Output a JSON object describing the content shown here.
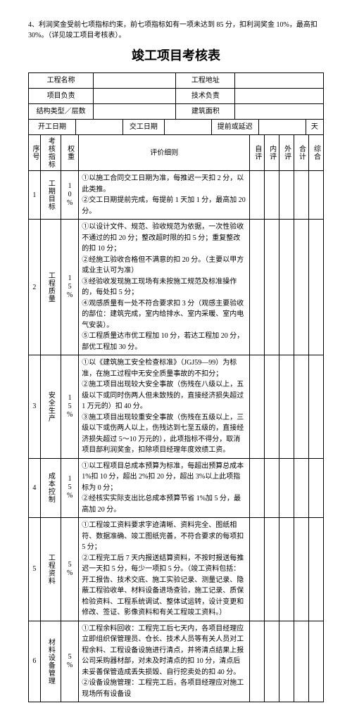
{
  "intro": "4、利润奖金受前七项指标约束，前七项指标如有一项未达到 85 分，扣利润奖金 10%，最高扣 30%。（详见竣工项目考核表）。",
  "title": "竣工项目考核表",
  "header": {
    "proj_name_lbl": "工程名称",
    "proj_addr_lbl": "工程地址",
    "proj_mgr_lbl": "项目负责",
    "tech_mgr_lbl": "技术负责",
    "struct_lbl": "结构类型／层数",
    "area_lbl": "建筑面积",
    "start_lbl": "开工日期",
    "hand_lbl": "交工日期",
    "advance_lbl": "提前或延迟",
    "days_lbl": "天"
  },
  "cols": {
    "seq": "序号",
    "indicator": "考核指标",
    "weight": "权重",
    "detail": "评价细则",
    "self": "自评",
    "int": "内评",
    "ext": "外评",
    "tot": "合计",
    "comp": "综合"
  },
  "rows": [
    {
      "seq": "1",
      "indicator": "工期目标",
      "weight": "10%",
      "detail": "①以施工合同交工日期为准，每推迟一天扣 2 分，以此类推。\n②交工日期提前完成，每提前 1 天加 1 分，最高加 20 分。"
    },
    {
      "seq": "2",
      "indicator": "工程质量",
      "weight": "15%",
      "detail": "①以设计文件、规范、验收规范为依据，一次性验收不通过的扣 20 分；整改超时限的扣 5 分；重复整改的扣 10 分；\n②经施工验收合格但不满意的扣 20 分。（主要以甲方或业主认可为准）\n③经验收发现施工现场有未按施工规范及标准操作的，每处扣 5 分；\n④观感质量有一处不符合要求扣 3 分（观感主要验收的部位：建筑完成，室内给排水、室内采暖、室内电气安装）。\n⑤工程质量达市优工程加 10 分，若达工程加 20 分，部优工程加 30 分。"
    },
    {
      "seq": "3",
      "indicator": "安全生产",
      "weight": "15%",
      "detail": "①以《建筑施工安全检查标准》（JGJ59—99）为标准，在施工过程中无安全质量事故的不扣分；\n②施工项目出现较大安全事故（伤残在八级以上，五级以下或同时伤两人但未致残的，直接经济损失超过 1 万元的）扣 40 分。\n③施工项目出现较重安全事故（伤残在五级以上，三级以下或伤两人以上，伤残达到七至五级的，直接经济损失超过 5～10 万元的），此项指标不得分，取消项目部利润奖金，扣除项目经理年度效绩工资。"
    },
    {
      "seq": "4",
      "indicator": "成本控制",
      "weight": "15%",
      "detail": "①以工程项目总成本预算为标准，每超出预算总成本 1%扣 10 分，超出 2%扣 20 分，超出 3%以上此项指标为 0 分；\n②经核实实际支出比总成本预算节省 1%加 5 分，最高加 20 分。"
    },
    {
      "seq": "5",
      "indicator": "工程资料",
      "weight": "5%",
      "detail": "①工程竣工资料要求字迹清晰、资料完全、图纸相符、数据准确、竣工图纸完善，不符合要求的每项扣 5 分；\n②工程完工后 7 天内报送结算资料，不按时报送每推迟一天扣 5 分，每少一项扣 5 分。（竣工资料包括：开工报告、技术交底、施工实验记录、测量记录、隐蔽工程验收单、材料设备进场查验，施工记录、质保检验资料、工程系统调试、整体试运转，设计变更和修改、签证、影像资料和有关工程竣工资料。）"
    },
    {
      "seq": "6",
      "indicator": "材料设备管理",
      "weight": "5%",
      "detail": "①工程余料回收：工程完工后七天内，各项目经理应立即组织保管理员、仓长、技术人员等有关人员对工程余料、工程设备设施进行清点，并将清点结果上报公司采购器材部，对未及时清点的扣 10 分，清点后未妥善保管造成丢失损毁、自行挖卖处的扣 40 分。\n②设备设施管理：工程完工后，各项目经理应对施工现场所有设备设"
    }
  ]
}
